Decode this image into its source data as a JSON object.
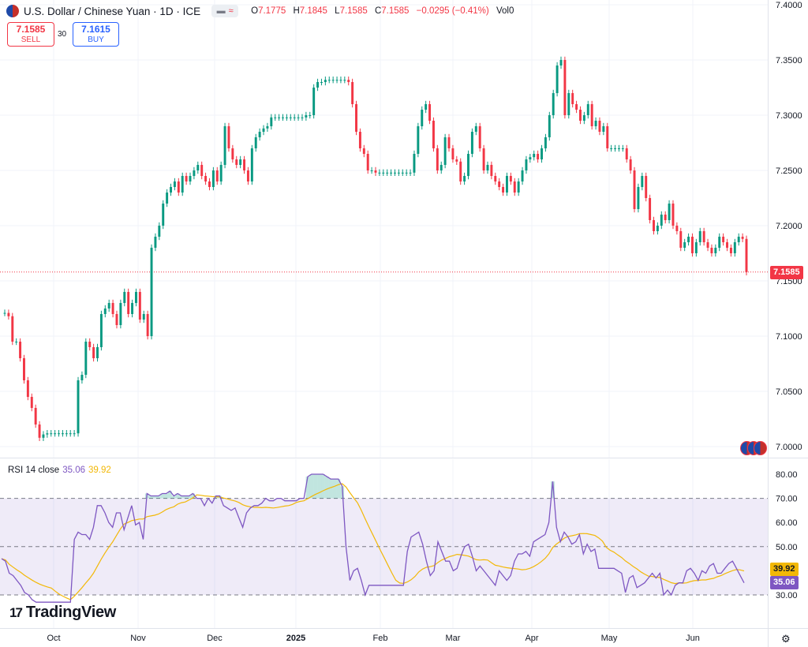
{
  "header": {
    "title": "U.S. Dollar / Chinese Yuan · 1D · ICE",
    "open_label": "O",
    "open": "7.1775",
    "high_label": "H",
    "high": "7.1845",
    "low_label": "L",
    "low": "7.1585",
    "close_label": "C",
    "close": "7.1585",
    "change": "−0.0295 (−0.41%)",
    "volume_label": "Vol",
    "volume": "0"
  },
  "trade": {
    "sell_price": "7.1585",
    "sell_label": "SELL",
    "spread": "30",
    "buy_price": "7.1615",
    "buy_label": "BUY"
  },
  "rsi": {
    "label": "RSI 14 close",
    "value": "35.06",
    "ma_value": "39.92"
  },
  "branding": {
    "name": "TradingView"
  },
  "price_tag": "7.1585",
  "colors": {
    "up": "#089981",
    "down": "#f23645",
    "rsi": "#7e57c2",
    "rsi_ma": "#f2b807",
    "buy": "#2962ff"
  },
  "chart_data": [
    {
      "type": "candlestick",
      "y_ticks": [
        "7.4000",
        "7.3500",
        "7.3000",
        "7.2500",
        "7.2000",
        "7.1500",
        "7.1000",
        "7.0500",
        "7.0000"
      ],
      "x_ticks": [
        "Oct",
        "Nov",
        "Dec",
        "2025",
        "Feb",
        "Mar",
        "Apr",
        "May",
        "Jun"
      ],
      "ylim": [
        7.0,
        7.4
      ],
      "close": [
        7.121,
        7.118,
        7.095,
        7.095,
        7.08,
        7.06,
        7.045,
        7.035,
        7.02,
        7.008,
        7.011,
        7.012,
        7.012,
        7.012,
        7.012,
        7.012,
        7.012,
        7.012,
        7.012,
        7.06,
        7.065,
        7.095,
        7.09,
        7.08,
        7.09,
        7.12,
        7.125,
        7.13,
        7.12,
        7.11,
        7.13,
        7.14,
        7.12,
        7.13,
        7.14,
        7.115,
        7.12,
        7.1,
        7.18,
        7.19,
        7.2,
        7.22,
        7.23,
        7.235,
        7.24,
        7.23,
        7.245,
        7.24,
        7.245,
        7.25,
        7.255,
        7.245,
        7.24,
        7.235,
        7.25,
        7.24,
        7.255,
        7.29,
        7.27,
        7.26,
        7.255,
        7.26,
        7.25,
        7.24,
        7.27,
        7.28,
        7.285,
        7.288,
        7.29,
        7.298,
        7.298,
        7.298,
        7.298,
        7.298,
        7.298,
        7.298,
        7.298,
        7.298,
        7.3,
        7.3,
        7.325,
        7.33,
        7.33,
        7.332,
        7.332,
        7.332,
        7.332,
        7.332,
        7.332,
        7.33,
        7.31,
        7.285,
        7.27,
        7.265,
        7.25,
        7.25,
        7.248,
        7.248,
        7.248,
        7.248,
        7.248,
        7.248,
        7.248,
        7.248,
        7.248,
        7.248,
        7.265,
        7.29,
        7.305,
        7.31,
        7.295,
        7.27,
        7.25,
        7.255,
        7.28,
        7.27,
        7.26,
        7.258,
        7.24,
        7.245,
        7.265,
        7.285,
        7.29,
        7.27,
        7.25,
        7.255,
        7.245,
        7.24,
        7.235,
        7.23,
        7.245,
        7.24,
        7.23,
        7.24,
        7.25,
        7.26,
        7.262,
        7.265,
        7.26,
        7.27,
        7.28,
        7.3,
        7.32,
        7.345,
        7.35,
        7.3,
        7.32,
        7.31,
        7.305,
        7.295,
        7.3,
        7.31,
        7.29,
        7.295,
        7.285,
        7.29,
        7.27,
        7.27,
        7.27,
        7.27,
        7.27,
        7.26,
        7.25,
        7.215,
        7.235,
        7.245,
        7.225,
        7.205,
        7.195,
        7.2,
        7.21,
        7.205,
        7.22,
        7.2,
        7.195,
        7.18,
        7.185,
        7.19,
        7.175,
        7.185,
        7.195,
        7.185,
        7.18,
        7.175,
        7.18,
        7.19,
        7.185,
        7.18,
        7.175,
        7.185,
        7.19,
        7.188,
        7.158
      ]
    },
    {
      "type": "line",
      "name": "RSI 14 close",
      "y_ticks": [
        "80.00",
        "70.00",
        "60.00",
        "50.00",
        "40.00",
        "30.00"
      ],
      "ylim": [
        25,
        83
      ],
      "rsi": [
        45,
        44,
        39,
        38,
        36,
        34,
        31,
        30,
        28,
        27,
        27,
        27,
        27,
        27,
        27,
        27,
        27,
        27,
        27,
        53,
        56,
        55,
        55,
        53,
        58,
        67,
        67,
        64,
        60,
        58,
        64,
        64,
        57,
        62,
        67,
        59,
        60,
        53,
        72,
        71,
        71,
        71,
        72,
        72,
        73,
        71,
        72,
        71,
        71,
        71,
        72,
        70,
        70,
        67,
        70,
        68,
        71,
        71,
        67,
        66,
        65,
        66,
        62,
        58,
        64,
        66,
        67,
        67,
        68,
        70,
        69,
        69,
        70,
        70,
        69,
        69,
        69,
        69,
        70,
        70,
        79,
        80,
        80,
        80,
        80,
        79,
        78,
        78,
        78,
        75,
        50,
        36,
        40,
        41,
        36,
        30,
        34,
        34,
        34,
        34,
        34,
        34,
        34,
        34,
        34,
        34,
        48,
        54,
        55,
        56,
        51,
        44,
        38,
        40,
        52,
        48,
        44,
        44,
        40,
        41,
        46,
        50,
        51,
        46,
        40,
        42,
        40,
        38,
        36,
        34,
        40,
        38,
        36,
        38,
        44,
        47,
        47,
        48,
        46,
        52,
        53,
        54,
        55,
        60,
        77,
        58,
        52,
        56,
        54,
        51,
        52,
        55,
        47,
        51,
        48,
        49,
        41,
        41,
        41,
        41,
        41,
        40,
        39,
        31,
        37,
        38,
        33,
        34,
        35,
        37,
        39,
        37,
        39,
        30,
        32,
        30,
        34,
        35,
        35,
        40,
        41,
        39,
        36,
        40,
        39,
        42,
        43,
        39,
        39,
        41,
        43,
        44,
        41,
        38,
        35
      ]
    }
  ]
}
